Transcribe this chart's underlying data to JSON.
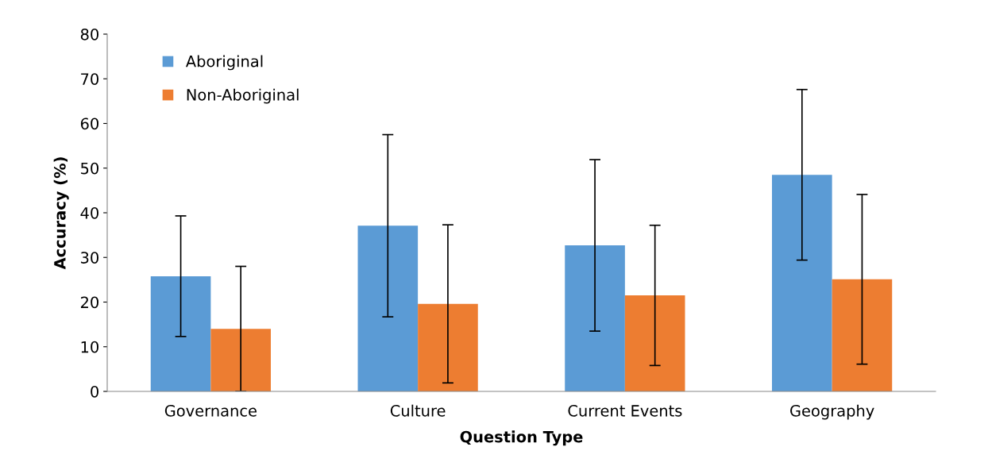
{
  "chart_data": {
    "type": "bar",
    "xlabel": "Question Type",
    "ylabel": "Accuracy (%)",
    "categories": [
      "Governance",
      "Culture",
      "Current Events",
      "Geography"
    ],
    "series": [
      {
        "name": "Aboriginal",
        "color": "#5b9bd5",
        "values": [
          25.8,
          37.1,
          32.7,
          48.5
        ],
        "errors": [
          13.5,
          20.4,
          19.2,
          19.1
        ]
      },
      {
        "name": "Non-Aboriginal",
        "color": "#ed7d31",
        "values": [
          14.0,
          19.6,
          21.5,
          25.1
        ],
        "errors": [
          14.0,
          17.7,
          15.7,
          19.0
        ]
      }
    ],
    "ylim": [
      0,
      80
    ],
    "yticks": [
      0,
      10,
      20,
      30,
      40,
      50,
      60,
      70,
      80
    ],
    "grid": false,
    "legend": "top left"
  }
}
